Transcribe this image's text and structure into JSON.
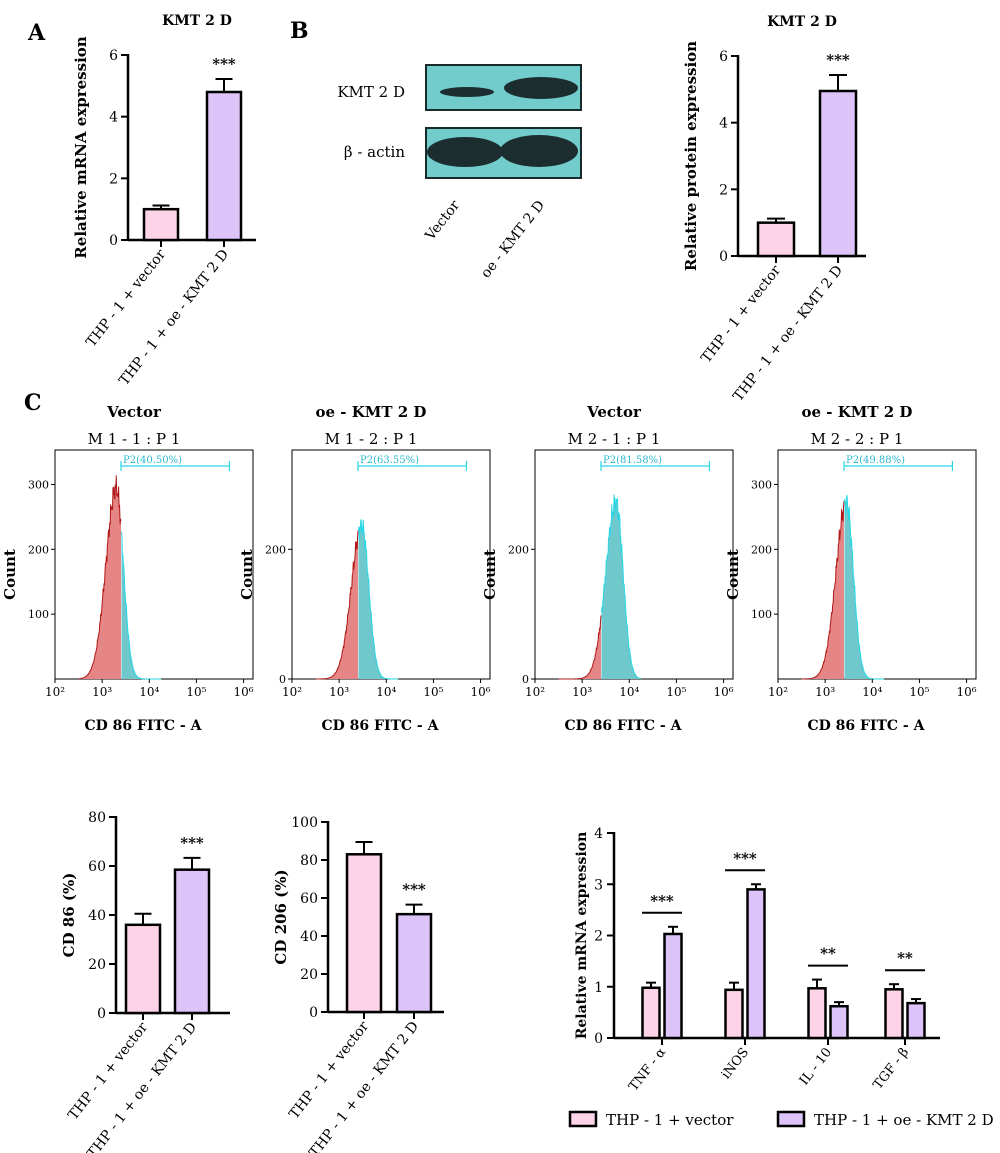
{
  "colors": {
    "pink": "#fcd3e7",
    "violet": "#dcc4f8",
    "axis": "#000000",
    "flow_red": "#e68585",
    "flow_red_line": "#b01818",
    "flow_cyan": "#6ec8cc",
    "flow_cyan_line": "#27d7e6",
    "blot_bg": "#72cccc",
    "blot_band": "#1b2d2f"
  },
  "panels": {
    "A": "A",
    "B": "B",
    "C": "C"
  },
  "western": {
    "row_labels": [
      "KMT 2 D",
      "β - actin"
    ],
    "lane_labels": [
      "Vector",
      "oe - KMT 2 D"
    ]
  },
  "flow": [
    {
      "header": "Vector",
      "title": "M 1 - 1 : P 1",
      "gate": "P2(40.50%)",
      "ylabel": "Count",
      "xlabel": "CD 86 FITC - A",
      "yticks": [
        "100",
        "200",
        "300"
      ],
      "xticks": [
        "10²",
        "10³",
        "10⁴",
        "10⁵",
        "10⁶"
      ],
      "peak": 1
    },
    {
      "header": "oe - KMT 2 D",
      "title": "M 1 - 2 : P 1",
      "gate": "P2(63.55%)",
      "ylabel": "Count",
      "xlabel": "CD 86 FITC - A",
      "yticks": [
        "0",
        "200"
      ],
      "xticks": [
        "10²",
        "10³",
        "10⁴",
        "10⁵",
        "10⁶"
      ],
      "peak": 2
    },
    {
      "header": "Vector",
      "title": "M 2 - 1 : P 1",
      "gate": "P2(81.58%)",
      "ylabel": "Count",
      "xlabel": "CD 86 FITC - A",
      "yticks": [
        "0",
        "200"
      ],
      "xticks": [
        "10²",
        "10³",
        "10⁴",
        "10⁵",
        "10⁶"
      ],
      "peak": 3
    },
    {
      "header": "oe - KMT 2 D",
      "title": "M 2 - 2 : P 1",
      "gate": "P2(49.88%)",
      "ylabel": "Count",
      "xlabel": "CD 86 FITC - A",
      "yticks": [
        "100",
        "200",
        "300"
      ],
      "xticks": [
        "10²",
        "10³",
        "10⁴",
        "10⁵",
        "10⁶"
      ],
      "peak": 4
    }
  ],
  "legend": [
    "THP - 1 + vector",
    "THP - 1 + oe - KMT 2 D"
  ],
  "chart_data": [
    {
      "id": "A",
      "type": "bar",
      "title": "KMT 2 D",
      "ylabel": "Relative mRNA expression",
      "categories": [
        "THP - 1 + vector",
        "THP - 1 + oe - KMT 2 D"
      ],
      "values": [
        1.0,
        4.8
      ],
      "errors": [
        0.12,
        0.42
      ],
      "ylim": [
        0,
        6
      ],
      "yticks": [
        "0",
        "2",
        "4",
        "6"
      ],
      "significance": "***"
    },
    {
      "id": "B",
      "type": "bar",
      "title": "KMT 2 D",
      "ylabel": "Relative protein expression",
      "categories": [
        "THP - 1 + vector",
        "THP - 1 + oe - KMT 2 D"
      ],
      "values": [
        1.0,
        4.95
      ],
      "errors": [
        0.12,
        0.48
      ],
      "ylim": [
        0,
        6
      ],
      "yticks": [
        "0",
        "2",
        "4",
        "6"
      ],
      "significance": "***"
    },
    {
      "id": "CD86",
      "type": "bar",
      "ylabel": "CD 86 (%)",
      "categories": [
        "THP - 1 + vector",
        "THP - 1 + oe - KMT 2 D"
      ],
      "values": [
        36,
        58.5
      ],
      "errors": [
        4.5,
        4.8
      ],
      "ylim": [
        0,
        80
      ],
      "yticks": [
        "0",
        "20",
        "40",
        "60",
        "80"
      ],
      "significance": "***"
    },
    {
      "id": "CD206",
      "type": "bar",
      "ylabel": "CD 206 (%)",
      "categories": [
        "THP - 1 + vector",
        "THP - 1 + oe - KMT 2 D"
      ],
      "values": [
        83,
        51.5
      ],
      "errors": [
        6.5,
        5
      ],
      "ylim": [
        0,
        100
      ],
      "yticks": [
        "0",
        "20",
        "40",
        "60",
        "80",
        "100"
      ],
      "significance": "***"
    },
    {
      "id": "cytokines",
      "type": "bar",
      "ylabel": "Relative mRNA expression",
      "categories": [
        "TNF - α",
        "iNOS",
        "IL - 10",
        "TGF - β"
      ],
      "series": [
        {
          "name": "THP - 1 + vector",
          "values": [
            0.98,
            0.94,
            0.97,
            0.95
          ],
          "errors": [
            0.1,
            0.14,
            0.17,
            0.1
          ]
        },
        {
          "name": "THP - 1 + oe - KMT 2 D",
          "values": [
            2.03,
            2.9,
            0.62,
            0.68
          ],
          "errors": [
            0.14,
            0.1,
            0.08,
            0.08
          ]
        }
      ],
      "ylim": [
        0,
        4
      ],
      "yticks": [
        "0",
        "1",
        "2",
        "3",
        "4"
      ],
      "significance": [
        "***",
        "***",
        "**",
        "**"
      ]
    }
  ]
}
